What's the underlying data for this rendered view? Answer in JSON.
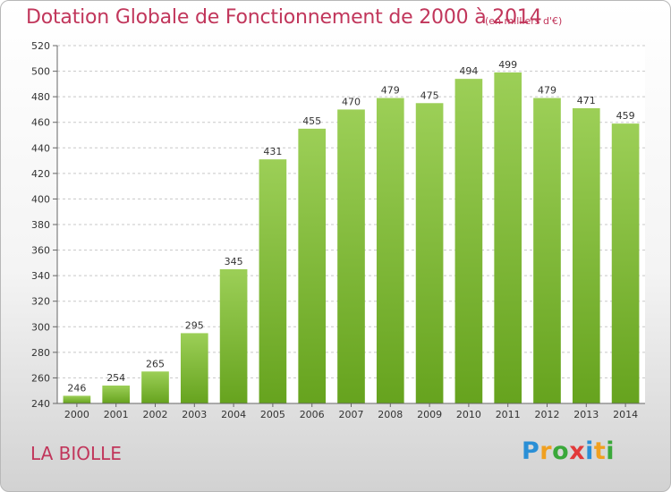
{
  "chart_data": {
    "type": "bar",
    "title": "Dotation Globale de Fonctionnement de 2000 à 2014",
    "subtitle": "(en milliers d'€)",
    "categories": [
      "2000",
      "2001",
      "2002",
      "2003",
      "2004",
      "2005",
      "2006",
      "2007",
      "2008",
      "2009",
      "2010",
      "2011",
      "2012",
      "2013",
      "2014"
    ],
    "values": [
      246,
      254,
      265,
      295,
      345,
      431,
      455,
      470,
      479,
      475,
      494,
      499,
      479,
      471,
      459
    ],
    "ylim": [
      240,
      520
    ],
    "ystep": 20,
    "xlabel": "",
    "ylabel": "",
    "grid": true,
    "bar_color": "#7cb82f",
    "grid_color": "#c8c8c8"
  },
  "commune": "LA BIOLLE",
  "logo": {
    "letters": [
      "P",
      "r",
      "o",
      "x",
      "i",
      "t",
      "i"
    ],
    "colors": [
      "#2a8fd6",
      "#f0a020",
      "#3aa83a",
      "#e23a3a",
      "#2a8fd6",
      "#f0a020",
      "#3aa83a"
    ]
  },
  "text_color": "#c1365b"
}
